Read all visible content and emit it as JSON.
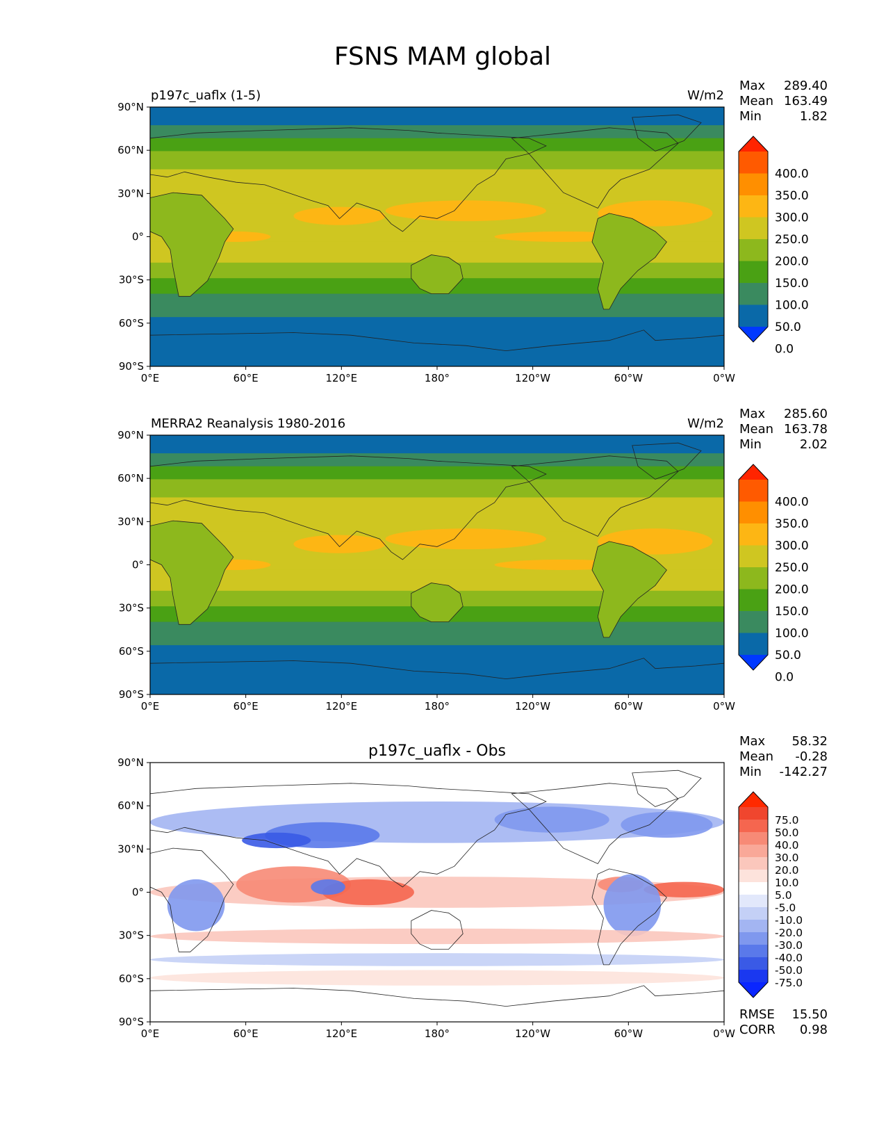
{
  "figure": {
    "title": "FSNS MAM global",
    "lat_ticks": [
      "90°N",
      "60°N",
      "30°N",
      "0°",
      "30°S",
      "60°S",
      "90°S"
    ],
    "lon_ticks": [
      "0°E",
      "60°E",
      "120°E",
      "180°",
      "120°W",
      "60°W",
      "0°W"
    ]
  },
  "panels": [
    {
      "title_left": "p197c_uaflx (1-5)",
      "title_center": "",
      "units": "W/m2",
      "stats": [
        {
          "label": "Max",
          "value": "289.40"
        },
        {
          "label": "Mean",
          "value": "163.49"
        },
        {
          "label": "Min",
          "value": "1.82"
        }
      ],
      "colorbar": {
        "labels": [
          "400.0",
          "350.0",
          "300.0",
          "250.0",
          "200.0",
          "150.0",
          "100.0",
          "50.0",
          "0.0"
        ],
        "colors": [
          "#ff2400",
          "#ff5a00",
          "#ff8f00",
          "#fdb614",
          "#cfc621",
          "#8db81d",
          "#4aa114",
          "#3a8a5f",
          "#0a69a8",
          "#0038ff"
        ]
      }
    },
    {
      "title_left": "MERRA2 Reanalysis 1980-2016",
      "title_center": "",
      "units": "W/m2",
      "stats": [
        {
          "label": "Max",
          "value": "285.60"
        },
        {
          "label": "Mean",
          "value": "163.78"
        },
        {
          "label": "Min",
          "value": "2.02"
        }
      ],
      "colorbar": {
        "labels": [
          "400.0",
          "350.0",
          "300.0",
          "250.0",
          "200.0",
          "150.0",
          "100.0",
          "50.0",
          "0.0"
        ],
        "colors": [
          "#ff2400",
          "#ff5a00",
          "#ff8f00",
          "#fdb614",
          "#cfc621",
          "#8db81d",
          "#4aa114",
          "#3a8a5f",
          "#0a69a8",
          "#0038ff"
        ]
      }
    },
    {
      "title_left": "",
      "title_center": "p197c_uaflx - Obs",
      "units": "",
      "stats": [
        {
          "label": "Max",
          "value": "58.32"
        },
        {
          "label": "Mean",
          "value": "-0.28"
        },
        {
          "label": "Min",
          "value": "-142.27"
        }
      ],
      "metrics": [
        {
          "label": "RMSE",
          "value": "15.50"
        },
        {
          "label": "CORR",
          "value": "0.98"
        }
      ],
      "colorbar": {
        "labels": [
          "75.0",
          "50.0",
          "40.0",
          "30.0",
          "20.0",
          "10.0",
          "5.0",
          "-5.0",
          "-10.0",
          "-20.0",
          "-30.0",
          "-40.0",
          "-50.0",
          "-75.0"
        ],
        "colors": [
          "#ff2a00",
          "#f0462e",
          "#f5664f",
          "#f78a76",
          "#f9a898",
          "#fbc7bc",
          "#fde3dc",
          "#ffffff",
          "#e2e8fb",
          "#c4d0f6",
          "#a3b5f2",
          "#7f98ee",
          "#5a79ea",
          "#3a5ae6",
          "#1a38f0",
          "#0a26ff"
        ]
      }
    }
  ]
}
